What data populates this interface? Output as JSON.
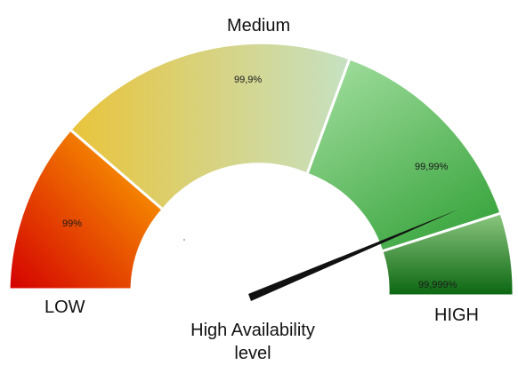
{
  "gauge": {
    "labels": {
      "medium": "Medium",
      "low": "LOW",
      "high": "HIGH",
      "center_line1": "High Availability",
      "center_line2": "level"
    },
    "segments": [
      {
        "name": "low",
        "label": "99%",
        "colors": [
          "#d40000",
          "#ffb000"
        ]
      },
      {
        "name": "medium",
        "label": "99,9%",
        "colors": [
          "#e9c43b",
          "#c6e1c3"
        ]
      },
      {
        "name": "green",
        "label": "99,99%",
        "colors": [
          "#a6e0a2",
          "#3fa843"
        ]
      },
      {
        "name": "dark-green",
        "label": "99,999%",
        "colors": [
          "#8cc780",
          "#0a6610"
        ]
      }
    ],
    "needle_color": "#111111"
  }
}
